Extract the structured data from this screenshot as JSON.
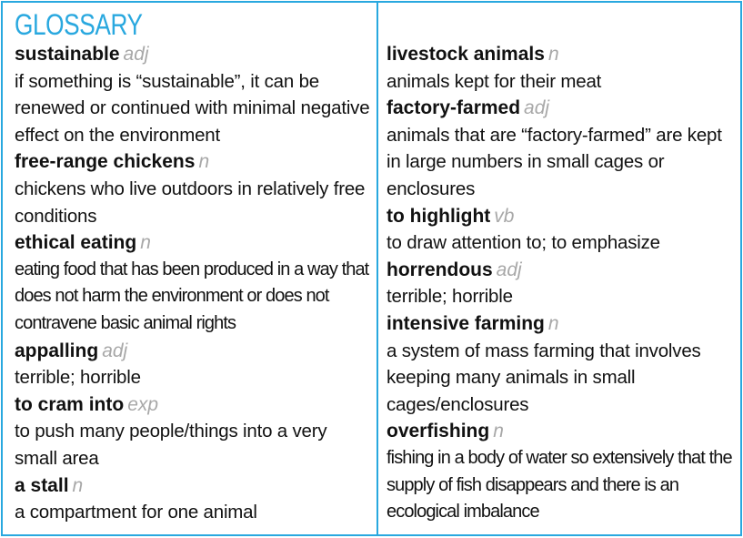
{
  "title": "GLOSSARY",
  "left": [
    {
      "term": "sustainable",
      "pos": "adj",
      "definition": "if something is “sustainable”, it can be renewed or continued with minimal negative effect on the environment"
    },
    {
      "term": "free-range chickens",
      "pos": "n",
      "definition": "chickens who live outdoors in relatively free conditions"
    },
    {
      "term": "ethical eating",
      "pos": "n",
      "definition": "eating food that has been produced in a way that does not harm the environment or does not contravene basic animal rights"
    },
    {
      "term": "appalling",
      "pos": "adj",
      "definition": "terrible; horrible"
    },
    {
      "term": "to cram into",
      "pos": "exp",
      "definition": "to push many people/things into a very small area"
    },
    {
      "term": "a stall",
      "pos": "n",
      "definition": "a compartment for one animal"
    }
  ],
  "right": [
    {
      "term": "livestock animals",
      "pos": "n",
      "definition": "animals kept for their meat"
    },
    {
      "term": "factory-farmed",
      "pos": "adj",
      "definition": "animals that are “factory-farmed” are kept in large numbers in small cages or enclosures"
    },
    {
      "term": "to highlight",
      "pos": "vb",
      "definition": "to draw attention to; to emphasize"
    },
    {
      "term": "horrendous",
      "pos": "adj",
      "definition": "terrible; horrible"
    },
    {
      "term": "intensive farming",
      "pos": "n",
      "definition": "a system of mass farming that involves keeping many animals in small cages/enclosures"
    },
    {
      "term": "overfishing",
      "pos": "n",
      "definition": "fishing in a body of water so extensively that the supply of fish disappears and there is an ecological imbalance"
    }
  ]
}
